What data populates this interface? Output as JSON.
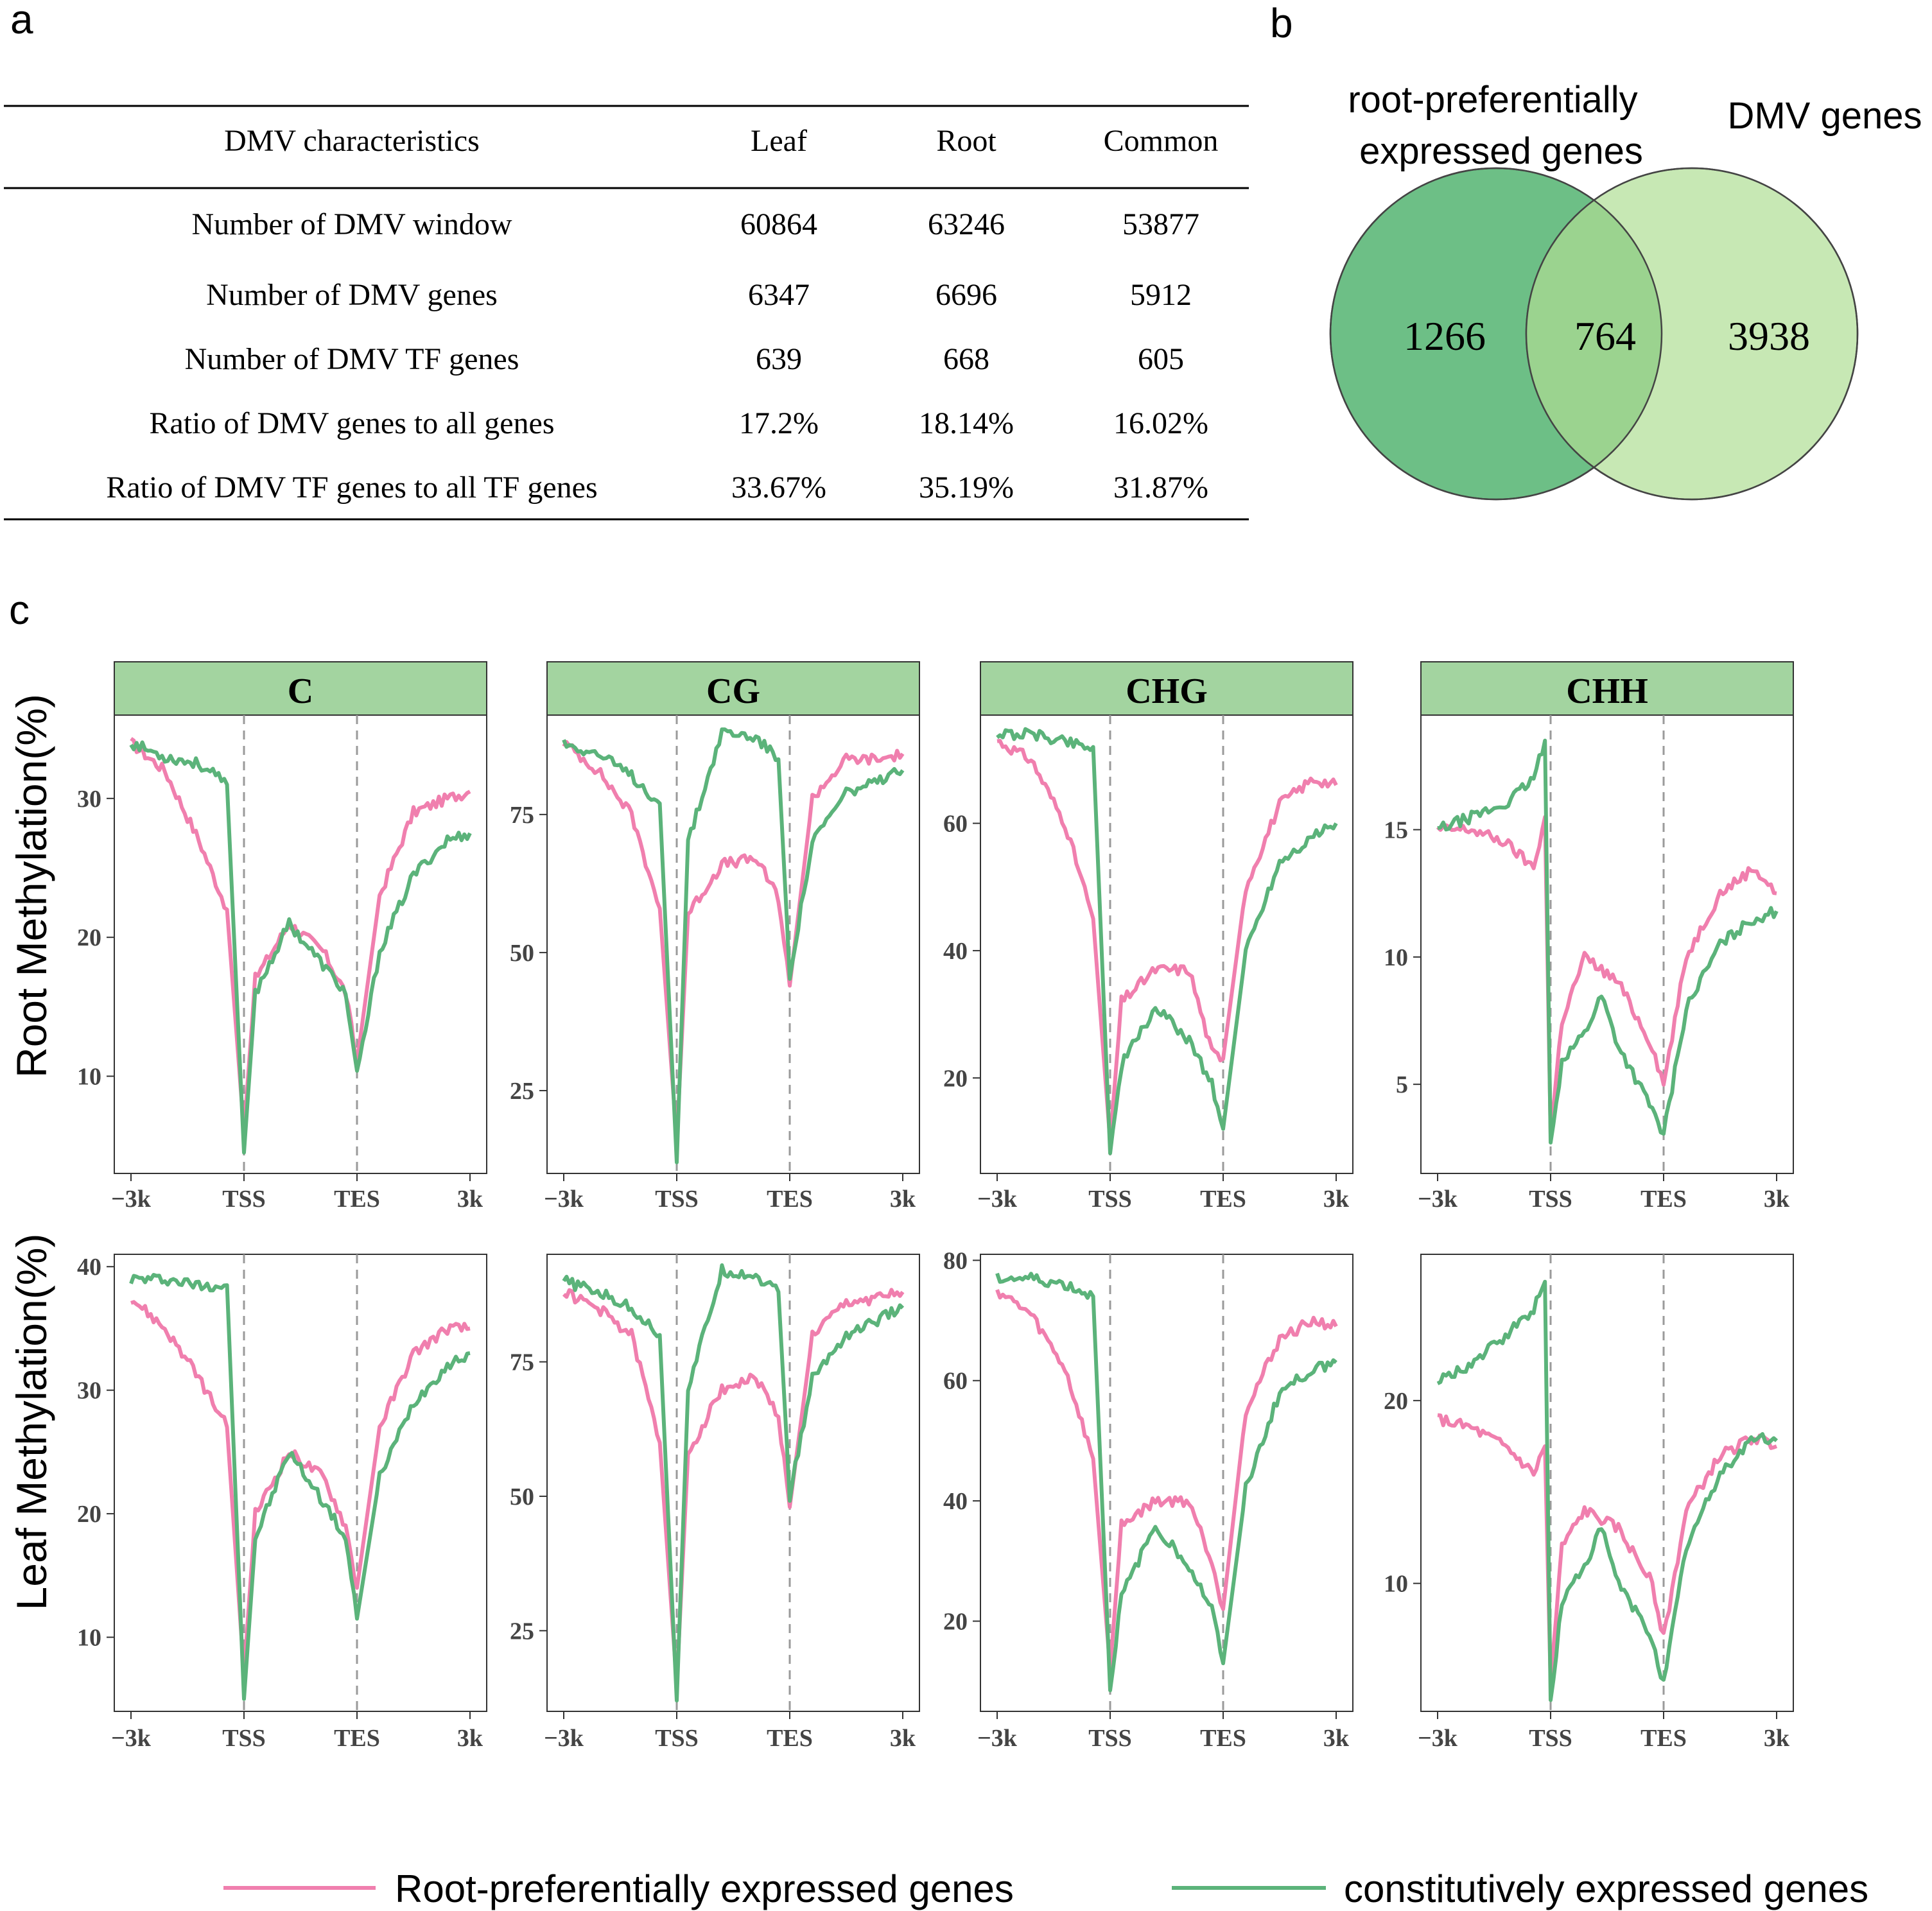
{
  "panel_labels": {
    "a": "a",
    "b": "b",
    "c": "c"
  },
  "table": {
    "headers": [
      "DMV characteristics",
      "Leaf",
      "Root",
      "Common"
    ],
    "rows": [
      [
        "Number of  DMV window",
        "60864",
        "63246",
        "53877"
      ],
      [
        "Number of  DMV genes",
        "6347",
        "6696",
        "5912"
      ],
      [
        "Number of  DMV TF genes",
        "639",
        "668",
        "605"
      ],
      [
        "Ratio of  DMV genes to all genes",
        "17.2%",
        "18.14%",
        "16.02%"
      ],
      [
        "Ratio of  DMV TF genes to all TF genes",
        "33.67%",
        "35.19%",
        "31.87%"
      ]
    ]
  },
  "venn": {
    "left_label_line1": "root-preferentially",
    "left_label_line2": "expressed genes",
    "right_label": "DMV genes",
    "left_only": "1266",
    "overlap": "764",
    "right_only": "3938",
    "left_color": "#6dbf86",
    "overlap_color": "#9bd38f",
    "right_color": "#c7e8b4"
  },
  "colors": {
    "root_pref": "#f07fae",
    "constitutive": "#5bb37a",
    "strip": "#a3d4a0"
  },
  "chart_data": {
    "type": "line",
    "title": "",
    "x_ticks": [
      "−3k",
      "TSS",
      "TES",
      "3k"
    ],
    "row_labels": [
      "Root Methylation(%)",
      "Leaf Methylation(%)"
    ],
    "series_names": [
      "Root-preferentially expressed genes",
      "constitutively expressed genes"
    ],
    "x_positions": "0=-3k, 1=TSS, 2=TES, 3=3k (gene body scaled between TSS and TES)",
    "panels": [
      {
        "row": 0,
        "context": "C",
        "ylim": [
          3,
          36
        ],
        "yticks": [
          10,
          20,
          30
        ],
        "root_pref": [
          [
            0,
            34
          ],
          [
            0.3,
            32
          ],
          [
            0.6,
            27
          ],
          [
            0.85,
            22
          ],
          [
            1.0,
            6
          ],
          [
            1.1,
            17
          ],
          [
            1.4,
            21
          ],
          [
            1.7,
            19
          ],
          [
            1.9,
            16
          ],
          [
            2.0,
            11
          ],
          [
            2.2,
            23
          ],
          [
            2.5,
            29
          ],
          [
            2.8,
            30
          ],
          [
            3.0,
            30.5
          ]
        ],
        "constitutive": [
          [
            0,
            34
          ],
          [
            0.3,
            33
          ],
          [
            0.6,
            32.5
          ],
          [
            0.85,
            31
          ],
          [
            1.0,
            4.5
          ],
          [
            1.1,
            16
          ],
          [
            1.4,
            21
          ],
          [
            1.7,
            18
          ],
          [
            1.9,
            16
          ],
          [
            2.0,
            10
          ],
          [
            2.2,
            19
          ],
          [
            2.5,
            24.5
          ],
          [
            2.8,
            27
          ],
          [
            3.0,
            27.5
          ]
        ]
      },
      {
        "row": 0,
        "context": "CG",
        "ylim": [
          10,
          93
        ],
        "yticks": [
          25,
          50,
          75
        ],
        "root_pref": [
          [
            0,
            88
          ],
          [
            0.3,
            83
          ],
          [
            0.6,
            75
          ],
          [
            0.85,
            58
          ],
          [
            1.0,
            16
          ],
          [
            1.1,
            57
          ],
          [
            1.4,
            66
          ],
          [
            1.7,
            67
          ],
          [
            1.9,
            60
          ],
          [
            2.0,
            44
          ],
          [
            2.2,
            78
          ],
          [
            2.5,
            85
          ],
          [
            2.8,
            85
          ],
          [
            3.0,
            86
          ]
        ],
        "constitutive": [
          [
            0,
            88
          ],
          [
            0.3,
            86
          ],
          [
            0.6,
            82
          ],
          [
            0.85,
            77
          ],
          [
            1.0,
            12
          ],
          [
            1.1,
            70
          ],
          [
            1.4,
            90
          ],
          [
            1.7,
            89
          ],
          [
            1.9,
            85
          ],
          [
            2.0,
            46
          ],
          [
            2.2,
            70
          ],
          [
            2.5,
            79
          ],
          [
            2.8,
            81
          ],
          [
            3.0,
            83
          ]
        ]
      },
      {
        "row": 0,
        "context": "CHG",
        "ylim": [
          5,
          77
        ],
        "yticks": [
          20,
          40,
          60
        ],
        "root_pref": [
          [
            0,
            73
          ],
          [
            0.3,
            70
          ],
          [
            0.6,
            60
          ],
          [
            0.85,
            45
          ],
          [
            1.0,
            10
          ],
          [
            1.1,
            32
          ],
          [
            1.4,
            37
          ],
          [
            1.7,
            37
          ],
          [
            1.9,
            24
          ],
          [
            2.0,
            23
          ],
          [
            2.2,
            50
          ],
          [
            2.5,
            63
          ],
          [
            2.8,
            67
          ],
          [
            3.0,
            66
          ]
        ],
        "constitutive": [
          [
            0,
            74
          ],
          [
            0.3,
            74
          ],
          [
            0.6,
            73
          ],
          [
            0.85,
            72
          ],
          [
            1.0,
            8
          ],
          [
            1.1,
            22
          ],
          [
            1.4,
            31
          ],
          [
            1.7,
            26
          ],
          [
            1.9,
            19
          ],
          [
            2.0,
            12
          ],
          [
            2.2,
            40
          ],
          [
            2.5,
            54
          ],
          [
            2.8,
            58
          ],
          [
            3.0,
            60
          ]
        ]
      },
      {
        "row": 0,
        "context": "CHH",
        "ylim": [
          1.5,
          19.5
        ],
        "yticks": [
          5,
          10,
          15
        ],
        "root_pref": [
          [
            0,
            15
          ],
          [
            0.3,
            15
          ],
          [
            0.6,
            14.5
          ],
          [
            0.85,
            13.5
          ],
          [
            0.95,
            15.5
          ],
          [
            1.0,
            3
          ],
          [
            1.1,
            7.5
          ],
          [
            1.3,
            10
          ],
          [
            1.6,
            9
          ],
          [
            1.9,
            6.5
          ],
          [
            2.0,
            5
          ],
          [
            2.2,
            10
          ],
          [
            2.5,
            12.5
          ],
          [
            2.8,
            13.5
          ],
          [
            3.0,
            12.5
          ]
        ],
        "constitutive": [
          [
            0,
            15
          ],
          [
            0.3,
            15.5
          ],
          [
            0.6,
            16
          ],
          [
            0.85,
            17
          ],
          [
            0.95,
            18.5
          ],
          [
            1.0,
            2.5
          ],
          [
            1.1,
            6
          ],
          [
            1.3,
            7
          ],
          [
            1.45,
            8.5
          ],
          [
            1.6,
            6.5
          ],
          [
            1.9,
            4
          ],
          [
            2.0,
            3
          ],
          [
            2.2,
            8
          ],
          [
            2.5,
            10.5
          ],
          [
            2.8,
            11.5
          ],
          [
            3.0,
            11.8
          ]
        ]
      },
      {
        "row": 1,
        "context": "C",
        "ylim": [
          4,
          41
        ],
        "yticks": [
          10,
          20,
          30,
          40
        ],
        "root_pref": [
          [
            0,
            37.5
          ],
          [
            0.3,
            35
          ],
          [
            0.6,
            31
          ],
          [
            0.85,
            27
          ],
          [
            1.0,
            7
          ],
          [
            1.1,
            20
          ],
          [
            1.4,
            25
          ],
          [
            1.7,
            23
          ],
          [
            1.9,
            19
          ],
          [
            2.0,
            14
          ],
          [
            2.2,
            27
          ],
          [
            2.5,
            33
          ],
          [
            2.8,
            35
          ],
          [
            3.0,
            35
          ]
        ],
        "constitutive": [
          [
            0,
            39
          ],
          [
            0.3,
            39
          ],
          [
            0.6,
            38.5
          ],
          [
            0.85,
            38.5
          ],
          [
            1.0,
            5
          ],
          [
            1.1,
            18
          ],
          [
            1.4,
            25
          ],
          [
            1.7,
            21
          ],
          [
            1.9,
            18
          ],
          [
            2.0,
            11.5
          ],
          [
            2.2,
            23
          ],
          [
            2.5,
            29
          ],
          [
            2.8,
            32
          ],
          [
            3.0,
            33
          ]
        ]
      },
      {
        "row": 1,
        "context": "CG",
        "ylim": [
          10,
          95
        ],
        "yticks": [
          25,
          50,
          75
        ],
        "root_pref": [
          [
            0,
            88
          ],
          [
            0.3,
            85
          ],
          [
            0.6,
            80
          ],
          [
            0.85,
            60
          ],
          [
            1.0,
            15
          ],
          [
            1.1,
            58
          ],
          [
            1.4,
            70
          ],
          [
            1.7,
            72
          ],
          [
            1.9,
            65
          ],
          [
            2.0,
            48
          ],
          [
            2.2,
            80
          ],
          [
            2.5,
            86
          ],
          [
            2.8,
            87
          ],
          [
            3.0,
            88
          ]
        ],
        "constitutive": [
          [
            0,
            90
          ],
          [
            0.3,
            88
          ],
          [
            0.6,
            85
          ],
          [
            0.85,
            80
          ],
          [
            1.0,
            12
          ],
          [
            1.1,
            70
          ],
          [
            1.4,
            92
          ],
          [
            1.7,
            91
          ],
          [
            1.9,
            88
          ],
          [
            2.0,
            50
          ],
          [
            2.2,
            72
          ],
          [
            2.5,
            80
          ],
          [
            2.8,
            83
          ],
          [
            3.0,
            85
          ]
        ]
      },
      {
        "row": 1,
        "context": "CHG",
        "ylim": [
          5,
          81
        ],
        "yticks": [
          20,
          40,
          60,
          80
        ],
        "root_pref": [
          [
            0,
            75
          ],
          [
            0.3,
            71
          ],
          [
            0.6,
            62
          ],
          [
            0.85,
            47
          ],
          [
            1.0,
            12
          ],
          [
            1.1,
            36
          ],
          [
            1.4,
            40
          ],
          [
            1.7,
            40
          ],
          [
            1.9,
            30
          ],
          [
            2.0,
            22
          ],
          [
            2.2,
            55
          ],
          [
            2.5,
            67
          ],
          [
            2.8,
            70
          ],
          [
            3.0,
            69
          ]
        ],
        "constitutive": [
          [
            0,
            77
          ],
          [
            0.3,
            77
          ],
          [
            0.6,
            76
          ],
          [
            0.85,
            74
          ],
          [
            1.0,
            9
          ],
          [
            1.1,
            24
          ],
          [
            1.4,
            36
          ],
          [
            1.7,
            29
          ],
          [
            1.9,
            22
          ],
          [
            2.0,
            13
          ],
          [
            2.2,
            42
          ],
          [
            2.5,
            58
          ],
          [
            2.8,
            62
          ],
          [
            3.0,
            63
          ]
        ]
      },
      {
        "row": 1,
        "context": "CHH",
        "ylim": [
          3,
          28
        ],
        "yticks": [
          10,
          20
        ],
        "root_pref": [
          [
            0,
            19
          ],
          [
            0.3,
            18.5
          ],
          [
            0.6,
            17.5
          ],
          [
            0.85,
            16
          ],
          [
            0.95,
            17.5
          ],
          [
            1.0,
            4.5
          ],
          [
            1.1,
            12
          ],
          [
            1.3,
            14
          ],
          [
            1.6,
            13
          ],
          [
            1.9,
            10
          ],
          [
            2.0,
            7
          ],
          [
            2.2,
            14
          ],
          [
            2.5,
            17
          ],
          [
            2.8,
            18
          ],
          [
            3.0,
            17.5
          ]
        ],
        "constitutive": [
          [
            0,
            21
          ],
          [
            0.3,
            22
          ],
          [
            0.6,
            23.5
          ],
          [
            0.85,
            25
          ],
          [
            0.95,
            26.5
          ],
          [
            1.0,
            3.5
          ],
          [
            1.1,
            9
          ],
          [
            1.3,
            11
          ],
          [
            1.45,
            13
          ],
          [
            1.6,
            10
          ],
          [
            1.9,
            7
          ],
          [
            2.0,
            4.5
          ],
          [
            2.2,
            12
          ],
          [
            2.5,
            16
          ],
          [
            2.8,
            18
          ],
          [
            3.0,
            17.8
          ]
        ]
      }
    ]
  }
}
